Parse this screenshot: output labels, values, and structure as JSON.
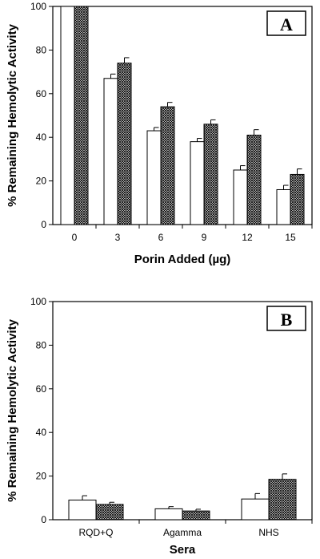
{
  "chart_data": [
    {
      "type": "bar",
      "panel_label": "A",
      "title": "",
      "xlabel": "Porin Added (µg)",
      "ylabel": "% Remaining Hemolytic Activity",
      "ylim": [
        0,
        100
      ],
      "yticks": [
        "0",
        "20",
        "40",
        "60",
        "80",
        "100"
      ],
      "categories": [
        "0",
        "3",
        "6",
        "9",
        "12",
        "15"
      ],
      "series": [
        {
          "fill": "#ffffff",
          "values": [
            100,
            67,
            43,
            38,
            25,
            16
          ],
          "errors": [
            0,
            2,
            1.5,
            1.5,
            2,
            2
          ]
        },
        {
          "fill": "crosshatch",
          "values": [
            100,
            74,
            54,
            46,
            41,
            23
          ],
          "errors": [
            0,
            2.5,
            2,
            2,
            2.5,
            2.5
          ]
        }
      ],
      "legend": "none",
      "grid": false
    },
    {
      "type": "bar",
      "panel_label": "B",
      "title": "",
      "xlabel": "Sera",
      "ylabel": "% Remaining Hemolytic Activity",
      "ylim": [
        0,
        100
      ],
      "yticks": [
        "0",
        "20",
        "40",
        "60",
        "80",
        "100"
      ],
      "categories": [
        "RQD+Q",
        "Agamma",
        "NHS"
      ],
      "series": [
        {
          "fill": "#ffffff",
          "values": [
            9,
            5,
            9.5
          ],
          "errors": [
            2,
            1,
            2.5
          ]
        },
        {
          "fill": "crosshatch",
          "values": [
            7,
            4,
            18.5
          ],
          "errors": [
            1,
            0.8,
            2.5
          ]
        }
      ],
      "legend": "none",
      "grid": false
    }
  ]
}
